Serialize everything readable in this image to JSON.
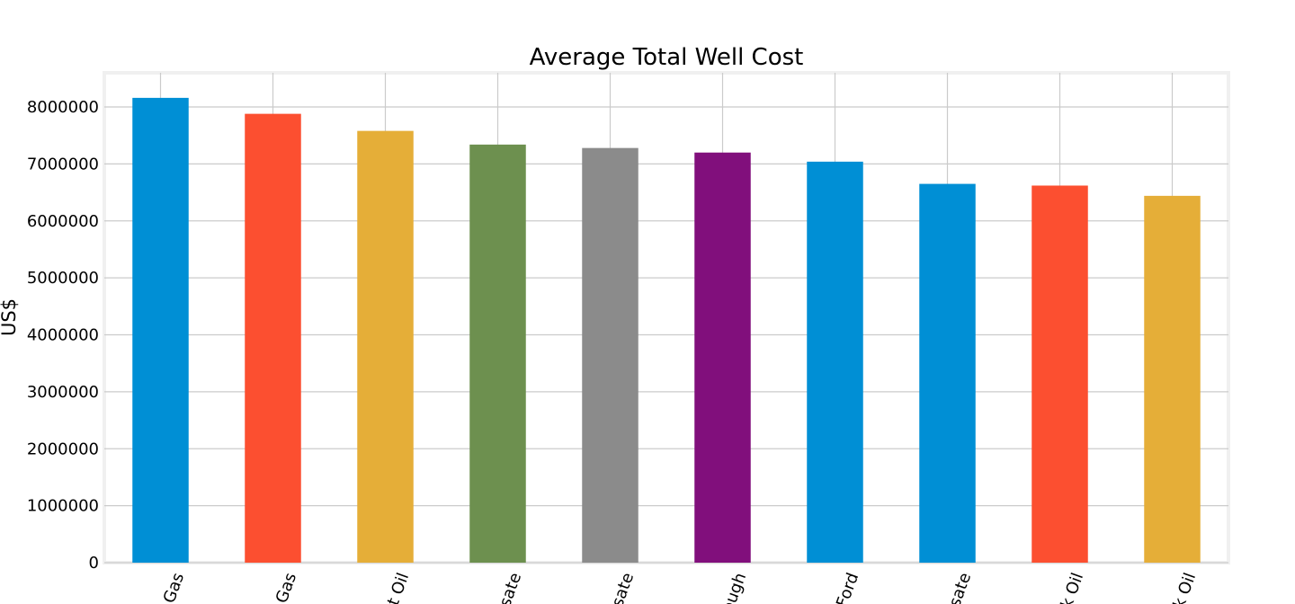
{
  "chart_data": {
    "type": "bar",
    "title": "Average Total Well Cost",
    "xlabel": "",
    "ylabel": "US$",
    "ylim": [
      0,
      8600000
    ],
    "yticks": [
      0,
      1000000,
      2000000,
      3000000,
      4000000,
      5000000,
      6000000,
      7000000,
      8000000
    ],
    "grid": true,
    "categories": [
      "Gas",
      "Gas",
      "t Oil",
      "sate",
      "sate",
      "ough",
      "Ford",
      "sate",
      "k Oil",
      "k Oil"
    ],
    "values": [
      8160000,
      7880000,
      7580000,
      7340000,
      7280000,
      7200000,
      7040000,
      6650000,
      6620000,
      6440000
    ],
    "colors": [
      "#008fd5",
      "#fc4f30",
      "#e5ae38",
      "#6d904f",
      "#8b8b8b",
      "#810f7c",
      "#008fd5",
      "#008fd5",
      "#fc4f30",
      "#e5ae38"
    ]
  }
}
